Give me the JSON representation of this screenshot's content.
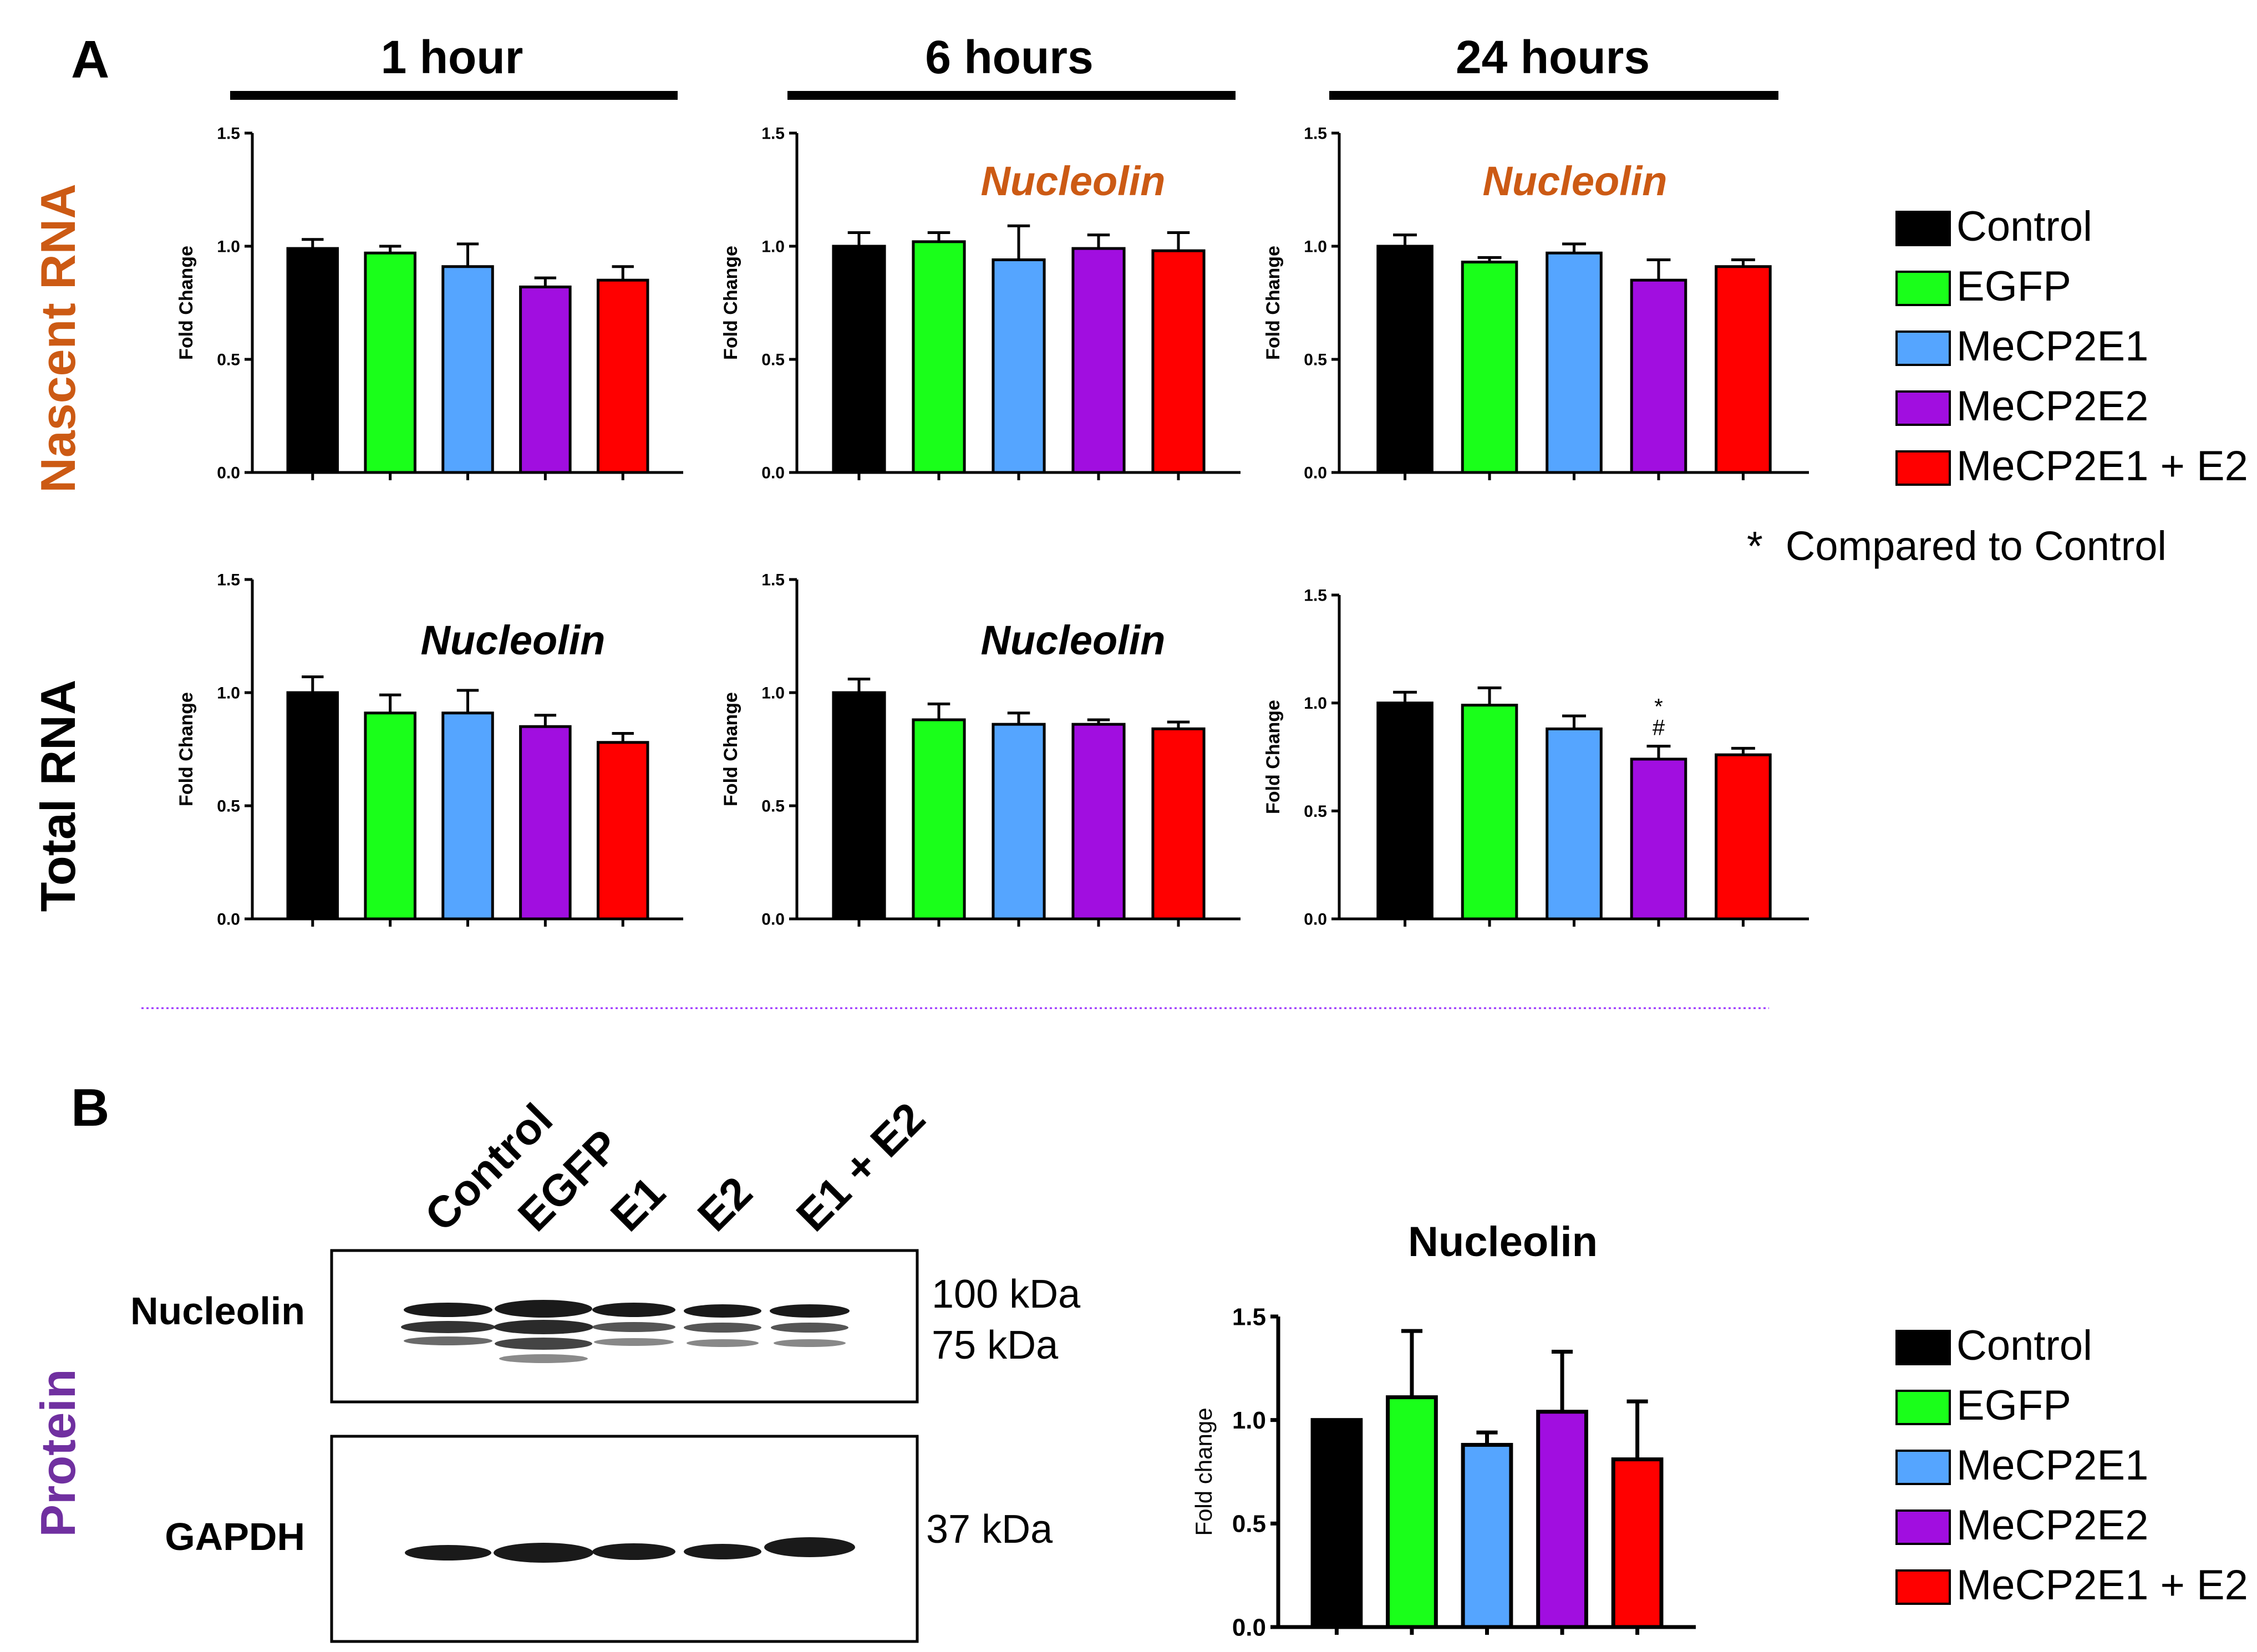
{
  "figure": {
    "panel_a_letter": "A",
    "panel_b_letter": "B",
    "row_labels": [
      "Nascent RNA",
      "Total RNA"
    ],
    "protein_label": "Protein",
    "timepoints": [
      "1 hour",
      "6 hours",
      "24 hours"
    ],
    "legend_a": [
      "Control",
      "EGFP",
      "MeCP2E1",
      "MeCP2E2",
      "MeCP2E1 + E2"
    ],
    "legend_b": [
      "Control",
      "EGFP",
      "MeCP2E1",
      "MeCP2E2",
      "MeCP2E1 + E2"
    ],
    "stat_note": "*  Compared to Control",
    "colors": {
      "Control": "#000000",
      "EGFP": "#1aff1a",
      "MeCP2E1": "#55a5ff",
      "MeCP2E2": "#a10ee0",
      "MeCP2E1 + E2": "#ff0000",
      "nascent_label": "#cc5a14",
      "protein_label": "#7030a0",
      "divider": "#9b30ff"
    }
  },
  "western_blot": {
    "lanes": [
      "Control",
      "EGFP",
      "E1",
      "E2",
      "E1 + E2"
    ],
    "bands": [
      {
        "name": "Nucleolin",
        "markers": [
          "100 kDa",
          "75 kDa"
        ]
      },
      {
        "name": "GAPDH",
        "markers": [
          "37 kDa"
        ]
      }
    ]
  },
  "chart_data": [
    {
      "id": "nascent-1h",
      "type": "bar",
      "row": "Nascent RNA",
      "time": "1 hour",
      "title": "",
      "xlabel": "",
      "ylabel": "Fold Change",
      "ylim": [
        0,
        1.5
      ],
      "yticks": [
        "0.0",
        "0.5",
        "1.0",
        "1.5"
      ],
      "categories": [
        "Control",
        "EGFP",
        "MeCP2E1",
        "MeCP2E2",
        "MeCP2E1 + E2"
      ],
      "values": [
        0.99,
        0.97,
        0.91,
        0.82,
        0.85
      ],
      "errors": [
        0.04,
        0.03,
        0.1,
        0.04,
        0.06
      ],
      "annotations": []
    },
    {
      "id": "nascent-6h",
      "type": "bar",
      "row": "Nascent RNA",
      "time": "6 hours",
      "title": "Nucleolin",
      "xlabel": "",
      "ylabel": "Fold Change",
      "ylim": [
        0,
        1.5
      ],
      "yticks": [
        "0.0",
        "0.5",
        "1.0",
        "1.5"
      ],
      "categories": [
        "Control",
        "EGFP",
        "MeCP2E1",
        "MeCP2E2",
        "MeCP2E1 + E2"
      ],
      "values": [
        1.0,
        1.02,
        0.94,
        0.99,
        0.98
      ],
      "errors": [
        0.06,
        0.04,
        0.15,
        0.06,
        0.08
      ],
      "annotations": []
    },
    {
      "id": "nascent-24h",
      "type": "bar",
      "row": "Nascent RNA",
      "time": "24 hours",
      "title": "Nucleolin",
      "xlabel": "",
      "ylabel": "Fold Change",
      "ylim": [
        0,
        1.5
      ],
      "yticks": [
        "0.0",
        "0.5",
        "1.0",
        "1.5"
      ],
      "categories": [
        "Control",
        "EGFP",
        "MeCP2E1",
        "MeCP2E2",
        "MeCP2E1 + E2"
      ],
      "values": [
        1.0,
        0.93,
        0.97,
        0.85,
        0.91
      ],
      "errors": [
        0.05,
        0.02,
        0.04,
        0.09,
        0.03
      ],
      "annotations": []
    },
    {
      "id": "total-1h",
      "type": "bar",
      "row": "Total RNA",
      "time": "1 hour",
      "title": "Nucleolin",
      "xlabel": "",
      "ylabel": "Fold Change",
      "ylim": [
        0,
        1.5
      ],
      "yticks": [
        "0.0",
        "0.5",
        "1.0",
        "1.5"
      ],
      "categories": [
        "Control",
        "EGFP",
        "MeCP2E1",
        "MeCP2E2",
        "MeCP2E1 + E2"
      ],
      "values": [
        1.0,
        0.91,
        0.91,
        0.85,
        0.78
      ],
      "errors": [
        0.07,
        0.08,
        0.1,
        0.05,
        0.04
      ],
      "annotations": []
    },
    {
      "id": "total-6h",
      "type": "bar",
      "row": "Total RNA",
      "time": "6 hours",
      "title": "Nucleolin",
      "xlabel": "",
      "ylabel": "Fold Change",
      "ylim": [
        0,
        1.5
      ],
      "yticks": [
        "0.0",
        "0.5",
        "1.0",
        "1.5"
      ],
      "categories": [
        "Control",
        "EGFP",
        "MeCP2E1",
        "MeCP2E2",
        "MeCP2E1 + E2"
      ],
      "values": [
        1.0,
        0.88,
        0.86,
        0.86,
        0.84
      ],
      "errors": [
        0.06,
        0.07,
        0.05,
        0.02,
        0.03
      ],
      "annotations": []
    },
    {
      "id": "total-24h",
      "type": "bar",
      "row": "Total RNA",
      "time": "24 hours",
      "title": "",
      "xlabel": "",
      "ylabel": "Fold Change",
      "ylim": [
        0,
        1.5
      ],
      "yticks": [
        "0.0",
        "0.5",
        "1.0",
        "1.5"
      ],
      "categories": [
        "Control",
        "EGFP",
        "MeCP2E1",
        "MeCP2E2",
        "MeCP2E1 + E2"
      ],
      "values": [
        1.0,
        0.99,
        0.88,
        0.74,
        0.76
      ],
      "errors": [
        0.05,
        0.08,
        0.06,
        0.06,
        0.03
      ],
      "annotations": [
        {
          "category": "MeCP2E2",
          "lines": [
            "*",
            "#"
          ]
        }
      ]
    },
    {
      "id": "protein",
      "type": "bar",
      "row": "Protein",
      "time": "",
      "title": "Nucleolin",
      "xlabel": "",
      "ylabel": "Fold change",
      "ylim": [
        0,
        1.5
      ],
      "yticks": [
        "0.0",
        "0.5",
        "1.0",
        "1.5"
      ],
      "categories": [
        "Control",
        "EGFP",
        "MeCP2E1",
        "MeCP2E2",
        "MeCP2E1 + E2"
      ],
      "values": [
        1.0,
        1.11,
        0.88,
        1.04,
        0.81
      ],
      "errors": [
        0,
        0.32,
        0.06,
        0.29,
        0.28
      ],
      "annotations": []
    }
  ]
}
